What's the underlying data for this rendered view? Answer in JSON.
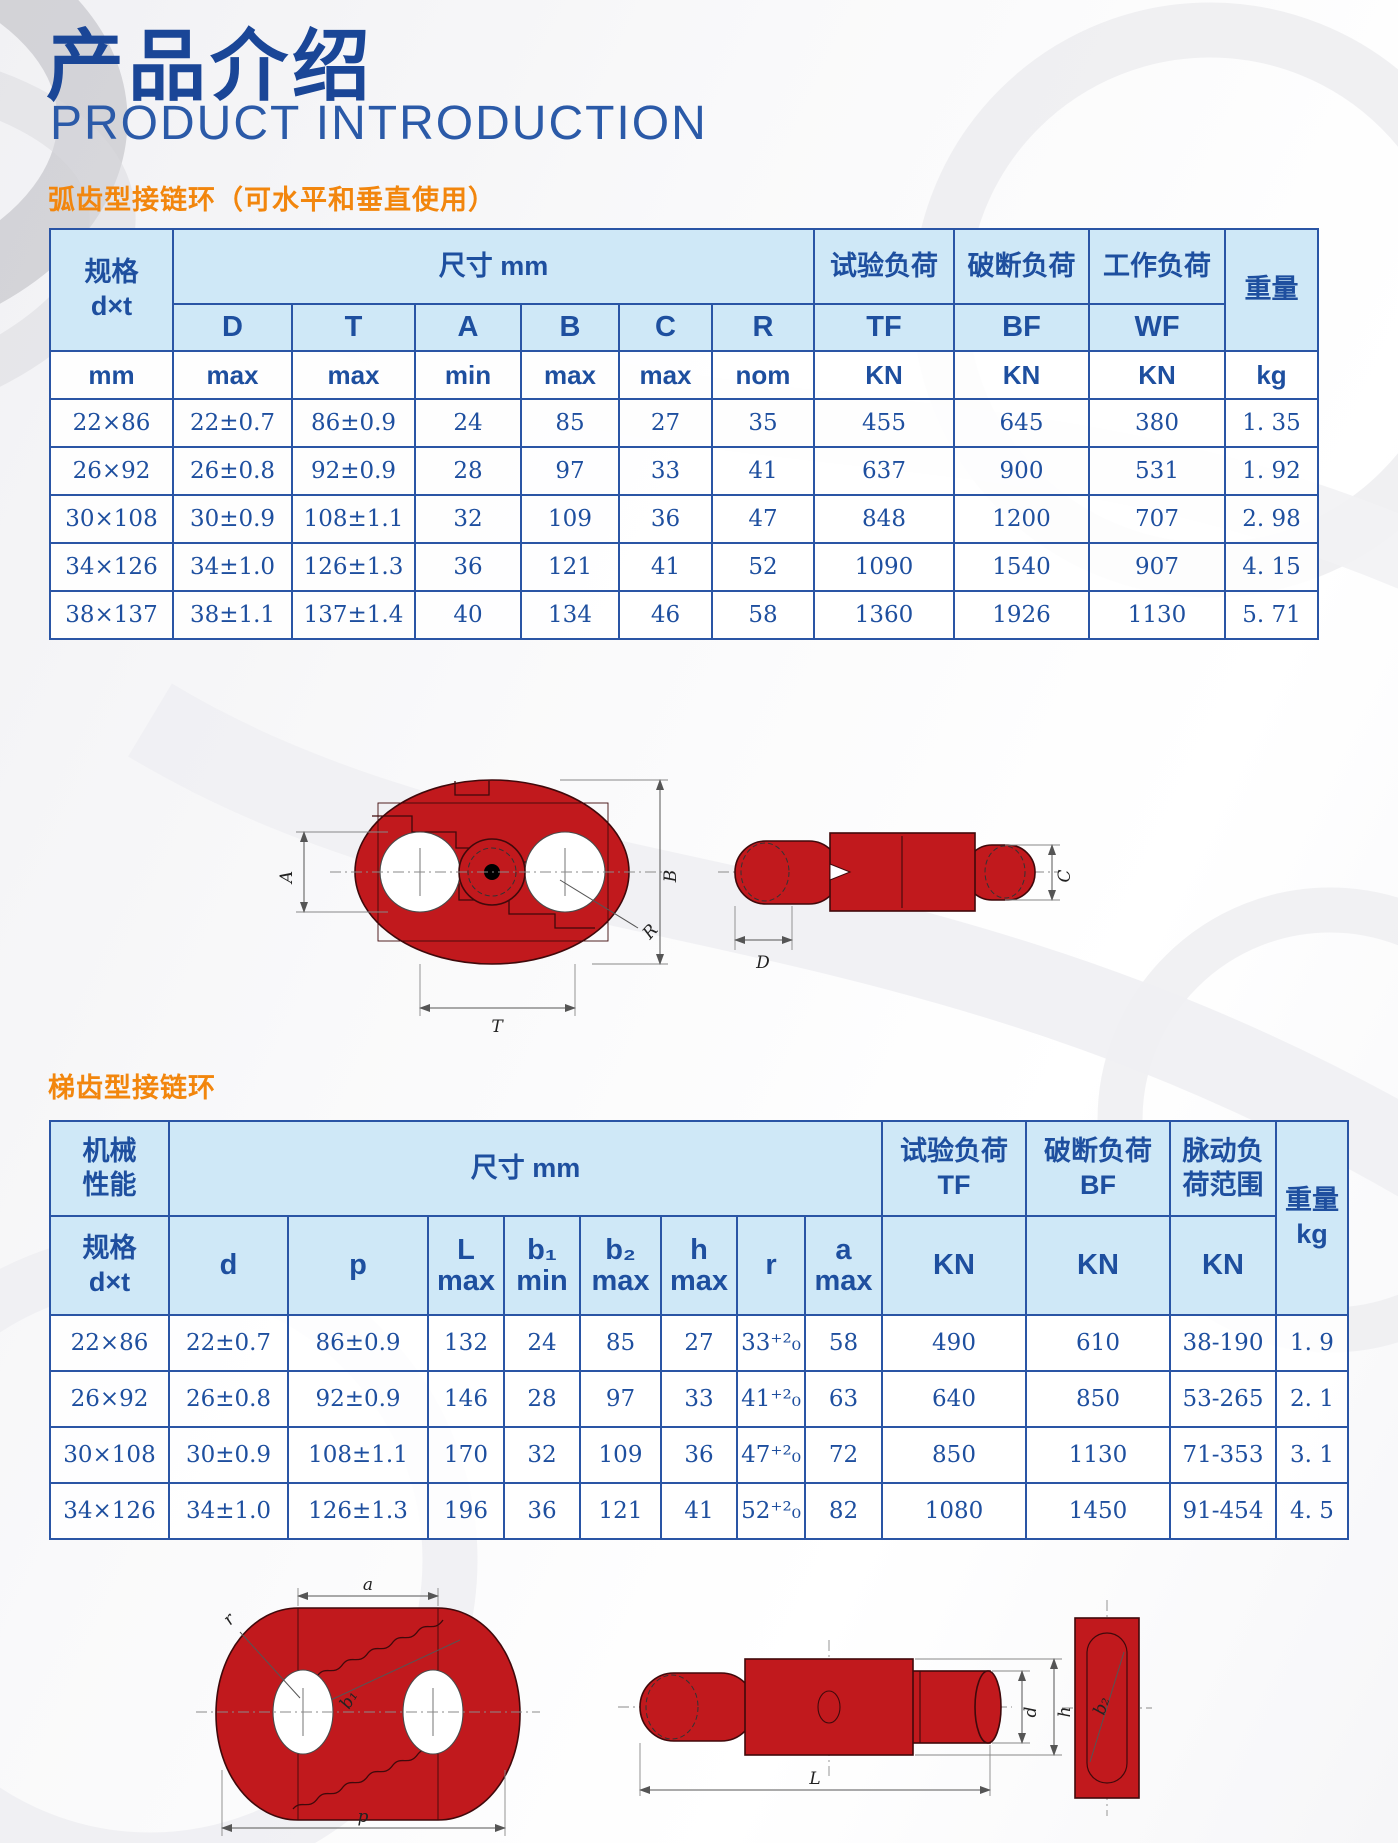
{
  "header": {
    "title_zh": "产品介绍",
    "title_en": "PRODUCT INTRODUCTION"
  },
  "colors": {
    "title_blue": "#1a4697",
    "subtitle_blue": "#2b5aa8",
    "orange_heading": "#f2860d",
    "table_border_blue": "#2a55a5",
    "table_header_bg": "#cfe8f7",
    "table_text_blue": "#1e4f9f",
    "drawing_red": "#c1191d"
  },
  "section_arc": {
    "heading": "弧齿型接链环（可水平和垂直使用）",
    "table": {
      "spec_header": "规格\nd×t",
      "size_label": "尺寸 mm",
      "load_groups": [
        "试验负荷",
        "破断负荷",
        "工作负荷"
      ],
      "dims": [
        "D",
        "T",
        "A",
        "B",
        "C",
        "R"
      ],
      "load_codes": [
        "TF",
        "BF",
        "WF"
      ],
      "weight_label": "重量",
      "units": [
        "mm",
        "max",
        "max",
        "min",
        "max",
        "max",
        "nom",
        "KN",
        "KN",
        "KN",
        "kg"
      ],
      "rows": [
        [
          "22×86",
          "22±0.7",
          "86±0.9",
          "24",
          "85",
          "27",
          "35",
          "455",
          "645",
          "380",
          "1. 35"
        ],
        [
          "26×92",
          "26±0.8",
          "92±0.9",
          "28",
          "97",
          "33",
          "41",
          "637",
          "900",
          "531",
          "1. 92"
        ],
        [
          "30×108",
          "30±0.9",
          "108±1.1",
          "32",
          "109",
          "36",
          "47",
          "848",
          "1200",
          "707",
          "2. 98"
        ],
        [
          "34×126",
          "34±1.0",
          "126±1.3",
          "36",
          "121",
          "41",
          "52",
          "1090",
          "1540",
          "907",
          "4. 15"
        ],
        [
          "38×137",
          "38±1.1",
          "137±1.4",
          "40",
          "134",
          "46",
          "58",
          "1360",
          "1926",
          "1130",
          "5. 71"
        ]
      ]
    },
    "drawing": {
      "labels": {
        "A": "A",
        "B": "B",
        "T": "T",
        "R": "R",
        "D": "D",
        "C": "C"
      }
    }
  },
  "section_ladder": {
    "heading": "梯齿型接链环",
    "table": {
      "mech_header": "机械\n性能",
      "spec_header": "规格\nd×t",
      "size_label": "尺寸 mm",
      "col_labels": [
        "d",
        "p",
        "L\nmax",
        "b₁\nmin",
        "b₂\nmax",
        "h\nmax",
        "r",
        "a\nmax"
      ],
      "load_groups": [
        "试验负荷\nTF",
        "破断负荷\nBF",
        "脉动负\n荷范围"
      ],
      "kn": "KN",
      "weight_header": "重量\nkg",
      "rows": [
        [
          "22×86",
          "22±0.7",
          "86±0.9",
          "132",
          "24",
          "85",
          "27",
          "33⁺²₀",
          "58",
          "490",
          "610",
          "38-190",
          "1. 9"
        ],
        [
          "26×92",
          "26±0.8",
          "92±0.9",
          "146",
          "28",
          "97",
          "33",
          "41⁺²₀",
          "63",
          "640",
          "850",
          "53-265",
          "2. 1"
        ],
        [
          "30×108",
          "30±0.9",
          "108±1.1",
          "170",
          "32",
          "109",
          "36",
          "47⁺²₀",
          "72",
          "850",
          "1130",
          "71-353",
          "3. 1"
        ],
        [
          "34×126",
          "34±1.0",
          "126±1.3",
          "196",
          "36",
          "121",
          "41",
          "52⁺²₀",
          "82",
          "1080",
          "1450",
          "91-454",
          "4. 5"
        ]
      ]
    },
    "drawing": {
      "labels": {
        "a": "a",
        "p": "p",
        "r": "r",
        "b1": "b₁",
        "L": "L",
        "d": "d",
        "h": "h",
        "b2": "b₂"
      }
    }
  }
}
